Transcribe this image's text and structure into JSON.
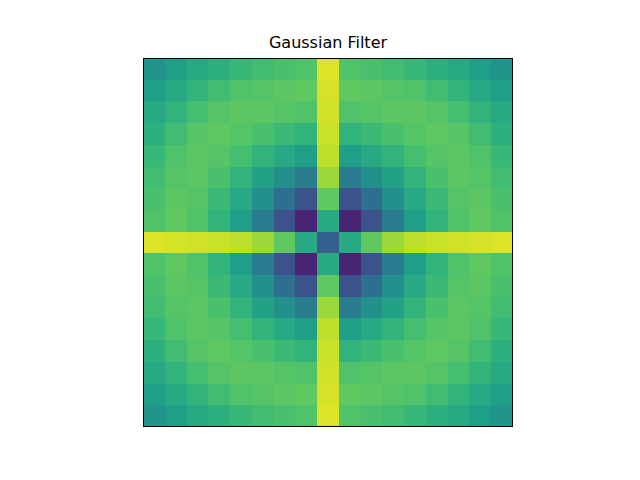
{
  "chart_data": {
    "type": "heatmap",
    "title": "Gaussian Filter",
    "color": "viridis",
    "tick_labels": false,
    "zlim": [
      0,
      1
    ],
    "cells": [
      [
        0.52,
        0.56,
        0.6,
        0.63,
        0.67,
        0.69,
        0.71,
        0.72,
        0.95,
        0.72,
        0.71,
        0.69,
        0.67,
        0.63,
        0.6,
        0.56,
        0.52
      ],
      [
        0.56,
        0.6,
        0.65,
        0.69,
        0.72,
        0.73,
        0.74,
        0.75,
        0.94,
        0.75,
        0.74,
        0.73,
        0.72,
        0.69,
        0.65,
        0.6,
        0.56
      ],
      [
        0.6,
        0.65,
        0.7,
        0.73,
        0.74,
        0.74,
        0.73,
        0.72,
        0.93,
        0.72,
        0.73,
        0.74,
        0.74,
        0.73,
        0.7,
        0.65,
        0.6
      ],
      [
        0.63,
        0.69,
        0.73,
        0.75,
        0.73,
        0.71,
        0.68,
        0.65,
        0.92,
        0.65,
        0.68,
        0.71,
        0.73,
        0.75,
        0.73,
        0.69,
        0.63
      ],
      [
        0.67,
        0.72,
        0.74,
        0.73,
        0.7,
        0.65,
        0.6,
        0.56,
        0.9,
        0.56,
        0.6,
        0.65,
        0.7,
        0.73,
        0.74,
        0.72,
        0.67
      ],
      [
        0.69,
        0.73,
        0.74,
        0.71,
        0.65,
        0.57,
        0.5,
        0.42,
        0.85,
        0.42,
        0.5,
        0.57,
        0.65,
        0.71,
        0.74,
        0.73,
        0.69
      ],
      [
        0.71,
        0.74,
        0.73,
        0.68,
        0.6,
        0.5,
        0.36,
        0.25,
        0.75,
        0.25,
        0.36,
        0.5,
        0.6,
        0.68,
        0.73,
        0.74,
        0.71
      ],
      [
        0.72,
        0.75,
        0.72,
        0.65,
        0.56,
        0.42,
        0.25,
        0.1,
        0.6,
        0.1,
        0.25,
        0.42,
        0.56,
        0.65,
        0.72,
        0.75,
        0.72
      ],
      [
        0.95,
        0.94,
        0.93,
        0.92,
        0.9,
        0.85,
        0.75,
        0.6,
        0.3,
        0.6,
        0.75,
        0.85,
        0.9,
        0.92,
        0.93,
        0.94,
        0.95
      ],
      [
        0.72,
        0.75,
        0.72,
        0.65,
        0.56,
        0.42,
        0.25,
        0.1,
        0.6,
        0.1,
        0.25,
        0.42,
        0.56,
        0.65,
        0.72,
        0.75,
        0.72
      ],
      [
        0.71,
        0.74,
        0.73,
        0.68,
        0.6,
        0.5,
        0.36,
        0.25,
        0.75,
        0.25,
        0.36,
        0.5,
        0.6,
        0.68,
        0.73,
        0.74,
        0.71
      ],
      [
        0.69,
        0.73,
        0.74,
        0.71,
        0.65,
        0.57,
        0.5,
        0.42,
        0.85,
        0.42,
        0.5,
        0.57,
        0.65,
        0.71,
        0.74,
        0.73,
        0.69
      ],
      [
        0.67,
        0.72,
        0.74,
        0.73,
        0.7,
        0.65,
        0.6,
        0.56,
        0.9,
        0.56,
        0.6,
        0.65,
        0.7,
        0.73,
        0.74,
        0.72,
        0.67
      ],
      [
        0.63,
        0.69,
        0.73,
        0.75,
        0.73,
        0.71,
        0.68,
        0.65,
        0.92,
        0.65,
        0.68,
        0.71,
        0.73,
        0.75,
        0.73,
        0.69,
        0.63
      ],
      [
        0.6,
        0.65,
        0.7,
        0.73,
        0.74,
        0.74,
        0.73,
        0.72,
        0.93,
        0.72,
        0.73,
        0.74,
        0.74,
        0.73,
        0.7,
        0.65,
        0.6
      ],
      [
        0.56,
        0.6,
        0.65,
        0.69,
        0.72,
        0.73,
        0.74,
        0.75,
        0.94,
        0.75,
        0.74,
        0.73,
        0.72,
        0.69,
        0.65,
        0.6,
        0.56
      ],
      [
        0.52,
        0.56,
        0.6,
        0.63,
        0.67,
        0.69,
        0.71,
        0.72,
        0.95,
        0.72,
        0.71,
        0.69,
        0.67,
        0.63,
        0.6,
        0.56,
        0.52
      ]
    ]
  }
}
